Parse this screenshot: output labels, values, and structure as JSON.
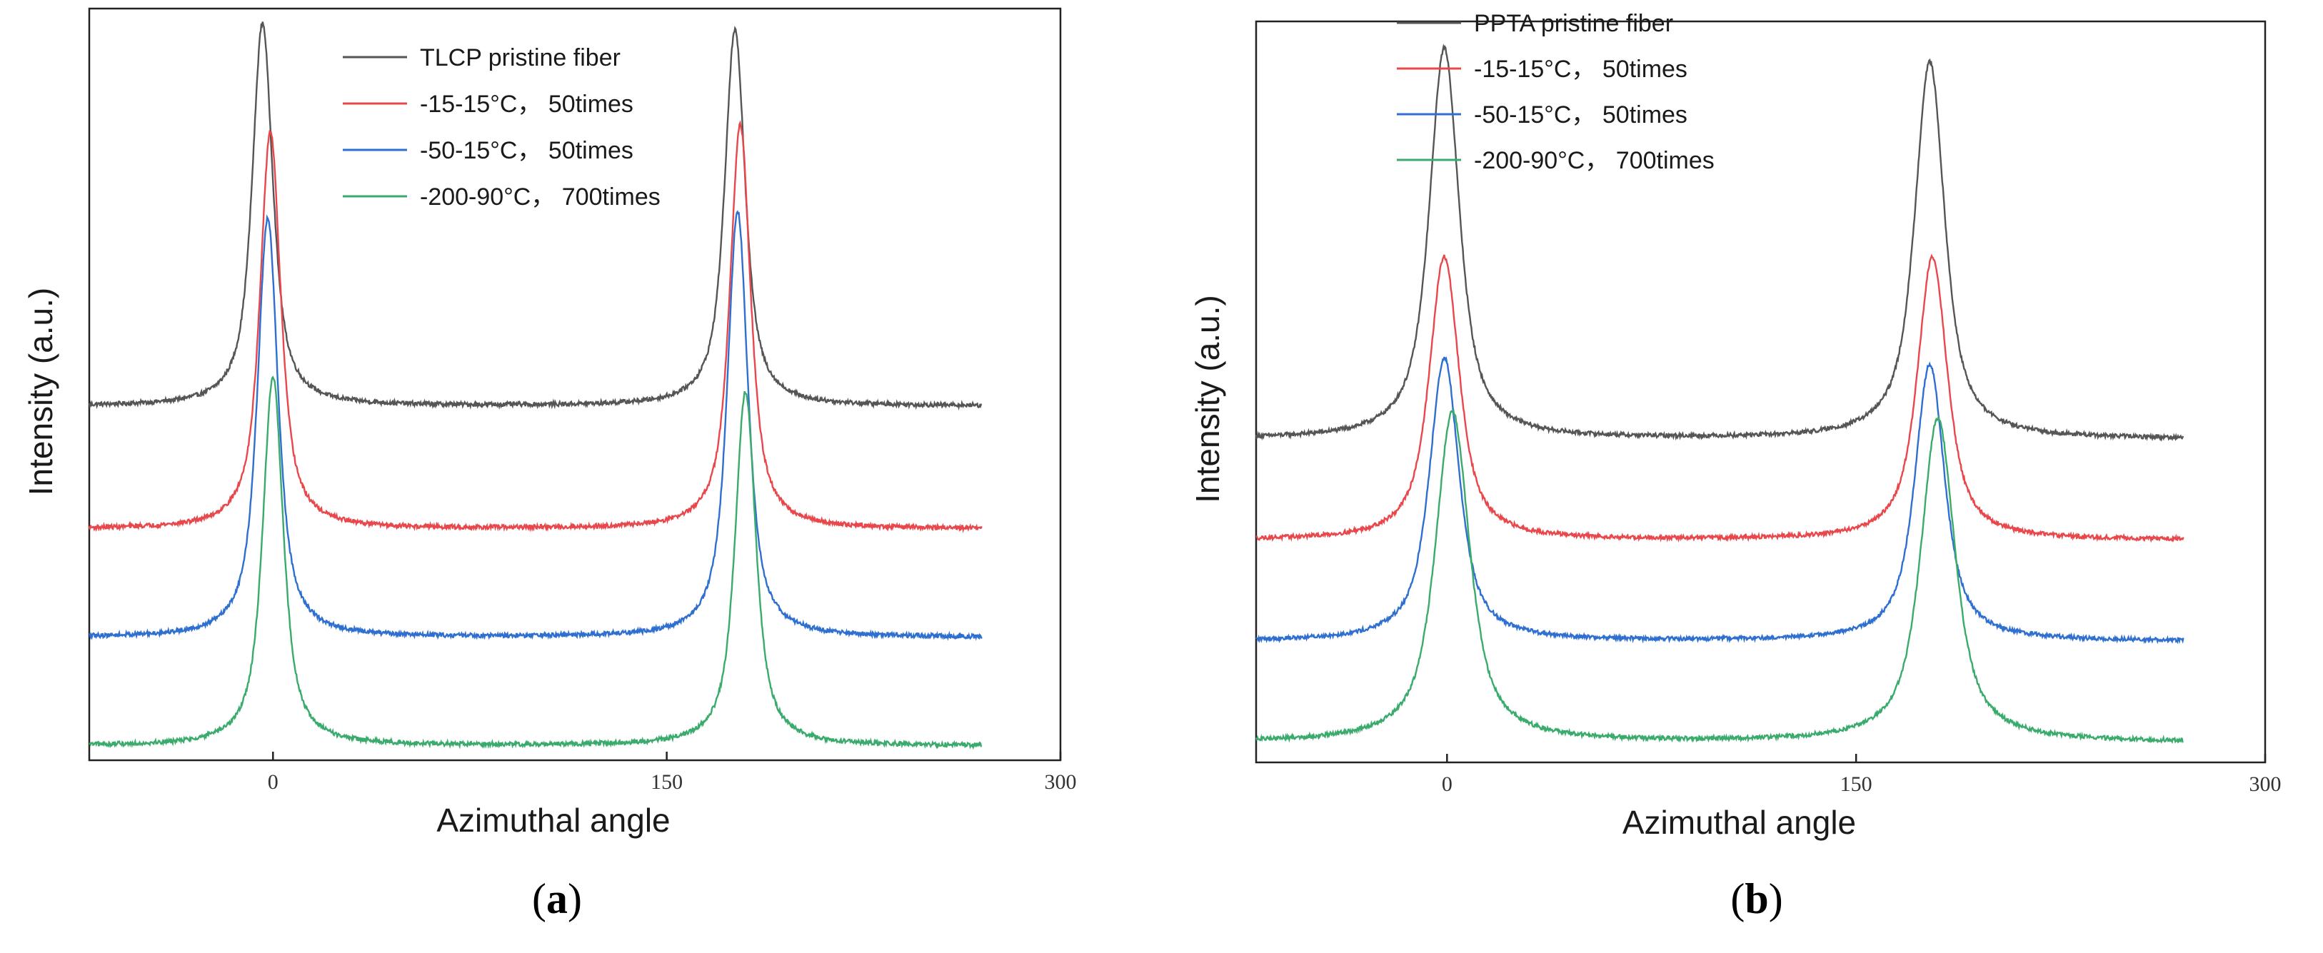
{
  "chart_data": [
    {
      "panel": "a",
      "type": "line",
      "caption_letter": "a",
      "xlabel": "Azimuthal angle",
      "ylabel": "Intensity (a.u.)",
      "xlim": [
        -70,
        300
      ],
      "x_range": [
        -70,
        270
      ],
      "x_ticks": [
        0,
        150,
        300
      ],
      "y_ticks_shown": false,
      "legend_position": "top-center",
      "series": [
        {
          "name": "TLCP pristine fiber",
          "color": "#555555",
          "baseline": 0.47,
          "peak_heights": [
            0.53,
            0.52
          ],
          "peak_centers": [
            -4,
            176
          ],
          "peak_width": 5
        },
        {
          "name": "-15-15°C， 50times",
          "color": "#e8474b",
          "baseline": 0.3,
          "peak_heights": [
            0.55,
            0.56
          ],
          "peak_centers": [
            -1,
            178
          ],
          "peak_width": 5
        },
        {
          "name": "-50-15°C， 50times",
          "color": "#2f6fd0",
          "baseline": 0.15,
          "peak_heights": [
            0.58,
            0.59
          ],
          "peak_centers": [
            -2,
            177
          ],
          "peak_width": 5
        },
        {
          "name": "-200-90°C， 700times",
          "color": "#3aab6c",
          "baseline": 0.0,
          "peak_heights": [
            0.51,
            0.49
          ],
          "peak_centers": [
            0,
            180
          ],
          "peak_width": 5
        }
      ]
    },
    {
      "panel": "b",
      "type": "line",
      "caption_letter": "b",
      "xlabel": "Azimuthal angle",
      "ylabel": "Intensity (a.u.)",
      "xlim": [
        -70,
        300
      ],
      "x_range": [
        -70,
        270
      ],
      "x_ticks": [
        0,
        150,
        300
      ],
      "y_ticks_shown": false,
      "legend_position": "top-center",
      "series": [
        {
          "name": "PPTA pristine fiber",
          "color": "#555555",
          "baseline": 0.45,
          "peak_heights": [
            0.58,
            0.56
          ],
          "peak_centers": [
            -1,
            177
          ],
          "peak_width": 7
        },
        {
          "name": "-15-15°C， 50times",
          "color": "#e8474b",
          "baseline": 0.3,
          "peak_heights": [
            0.42,
            0.42
          ],
          "peak_centers": [
            -1,
            178
          ],
          "peak_width": 7
        },
        {
          "name": "-50-15°C， 50times",
          "color": "#2f6fd0",
          "baseline": 0.15,
          "peak_heights": [
            0.42,
            0.41
          ],
          "peak_centers": [
            -1,
            177
          ],
          "peak_width": 7
        },
        {
          "name": "-200-90°C， 700times",
          "color": "#3aab6c",
          "baseline": 0.0,
          "peak_heights": [
            0.49,
            0.48
          ],
          "peak_centers": [
            2,
            180
          ],
          "peak_width": 8
        }
      ]
    }
  ]
}
